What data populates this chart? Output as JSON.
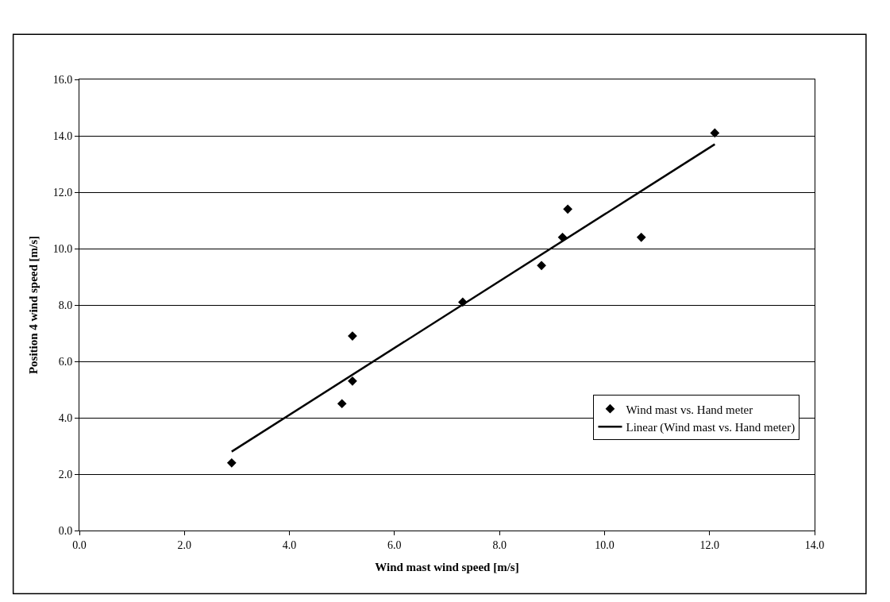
{
  "chart_data": {
    "type": "scatter",
    "xlabel": "Wind mast wind speed [m/s]",
    "ylabel": "Position 4 wind speed [m/s]",
    "series": [
      {
        "name": "Wind mast vs. Hand meter",
        "color": "#000000",
        "marker": "diamond",
        "x": [
          2.9,
          5.0,
          5.2,
          5.2,
          7.3,
          8.8,
          9.2,
          9.3,
          10.7,
          12.1
        ],
        "values": [
          2.4,
          4.5,
          6.9,
          5.3,
          8.1,
          9.4,
          10.4,
          11.4,
          10.4,
          14.1
        ]
      },
      {
        "name": "Linear (Wind mast vs. Hand meter)",
        "type": "line",
        "color": "#000000",
        "marker": "none",
        "line_style": "solid",
        "x": [
          2.9,
          12.1
        ],
        "values": [
          2.8,
          13.7
        ]
      }
    ],
    "xlim": [
      0,
      14
    ],
    "xticks": [
      {
        "value": 0,
        "label": "0.0"
      },
      {
        "value": 2,
        "label": "2.0"
      },
      {
        "value": 4,
        "label": "4.0"
      },
      {
        "value": 6,
        "label": "6.0"
      },
      {
        "value": 8,
        "label": "8.0"
      },
      {
        "value": 10,
        "label": "10.0"
      },
      {
        "value": 12,
        "label": "12.0"
      },
      {
        "value": 14,
        "label": "14.0"
      }
    ],
    "ylim": [
      0,
      16
    ],
    "yticks": [
      {
        "value": 0,
        "label": "0.0"
      },
      {
        "value": 2,
        "label": "2.0"
      },
      {
        "value": 4,
        "label": "4.0"
      },
      {
        "value": 6,
        "label": "6.0"
      },
      {
        "value": 8,
        "label": "8.0"
      },
      {
        "value": 10,
        "label": "10.0"
      },
      {
        "value": 12,
        "label": "12.0"
      },
      {
        "value": 14,
        "label": "14.0"
      },
      {
        "value": 16,
        "label": "16.0"
      }
    ],
    "grid": "y",
    "legend": "bottom right"
  }
}
